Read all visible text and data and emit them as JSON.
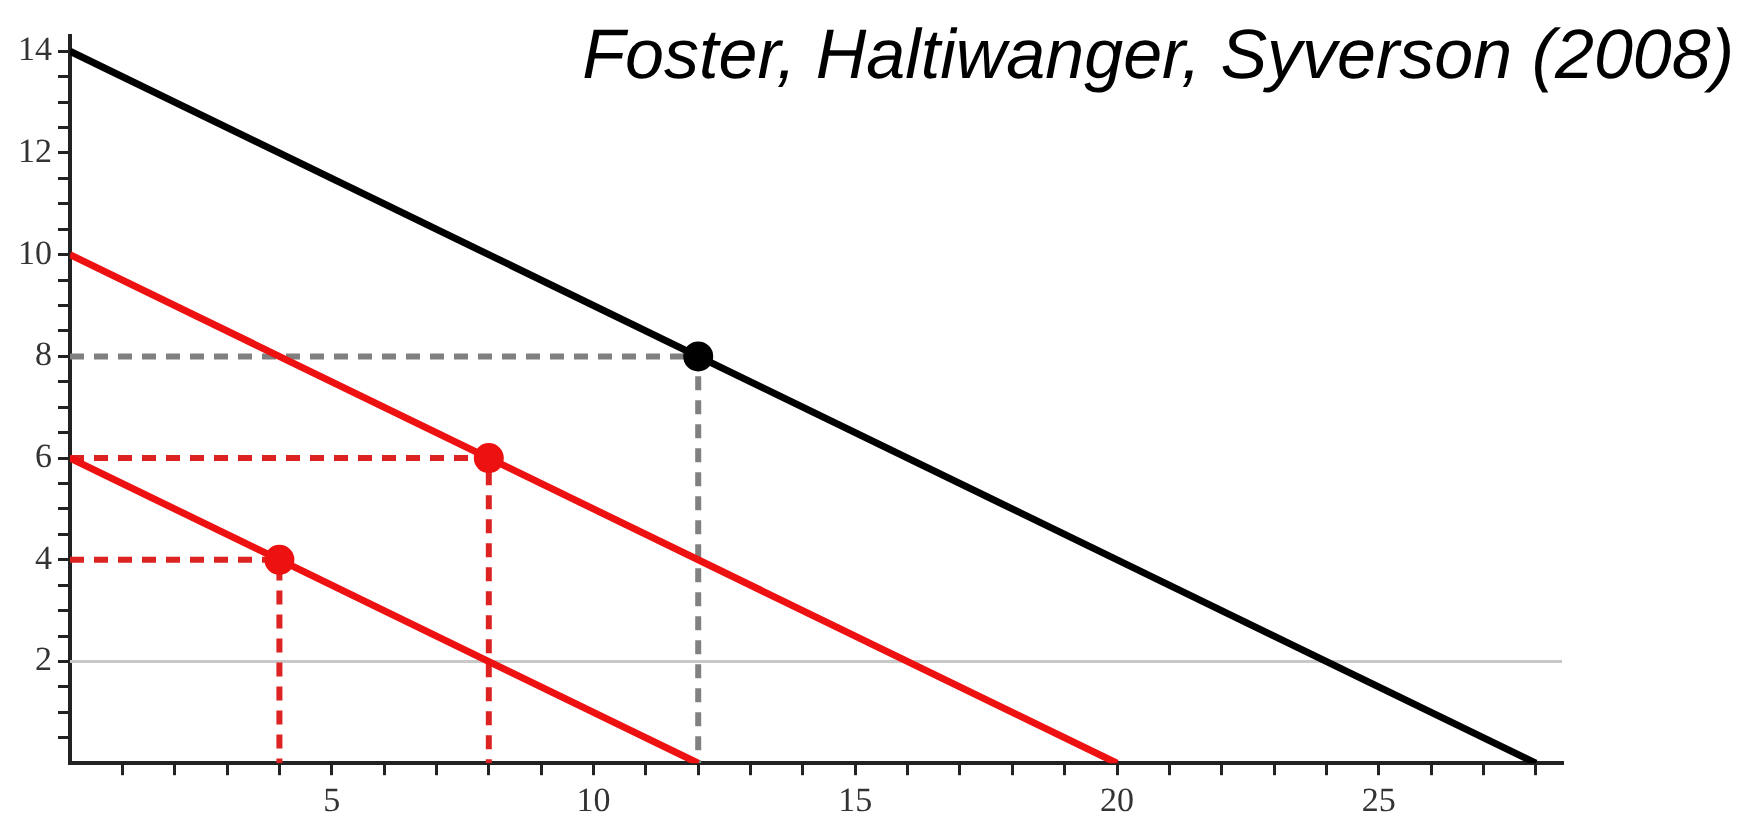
{
  "chart_data": {
    "type": "line",
    "annotations": [
      "Foster, Haltiwanger, Syverson (2008)"
    ],
    "xlim": [
      0,
      28.5
    ],
    "ylim": [
      0,
      14.3
    ],
    "xticks": [
      {
        "value": 1,
        "label": null
      },
      {
        "value": 2,
        "label": null
      },
      {
        "value": 3,
        "label": null
      },
      {
        "value": 4,
        "label": null
      },
      5,
      {
        "value": 6,
        "label": null
      },
      {
        "value": 7,
        "label": null
      },
      {
        "value": 8,
        "label": null
      },
      {
        "value": 9,
        "label": null
      },
      10,
      {
        "value": 11,
        "label": null
      },
      {
        "value": 12,
        "label": null
      },
      {
        "value": 13,
        "label": null
      },
      {
        "value": 14,
        "label": null
      },
      15,
      {
        "value": 16,
        "label": null
      },
      {
        "value": 17,
        "label": null
      },
      {
        "value": 18,
        "label": null
      },
      {
        "value": 19,
        "label": null
      },
      20,
      {
        "value": 21,
        "label": null
      },
      {
        "value": 22,
        "label": null
      },
      {
        "value": 23,
        "label": null
      },
      {
        "value": 24,
        "label": null
      },
      25,
      {
        "value": 26,
        "label": null
      },
      {
        "value": 27,
        "label": null
      },
      {
        "value": 28,
        "label": null
      }
    ],
    "yticks": [
      {
        "value": 0.5,
        "label": null
      },
      {
        "value": 1,
        "label": null
      },
      {
        "value": 1.5,
        "label": null
      },
      2,
      {
        "value": 2.5,
        "label": null
      },
      {
        "value": 3,
        "label": null
      },
      {
        "value": 3.5,
        "label": null
      },
      4,
      {
        "value": 4.5,
        "label": null
      },
      {
        "value": 5,
        "label": null
      },
      {
        "value": 5.5,
        "label": null
      },
      6,
      {
        "value": 6.5,
        "label": null
      },
      {
        "value": 7,
        "label": null
      },
      {
        "value": 7.5,
        "label": null
      },
      8,
      {
        "value": 8.5,
        "label": null
      },
      {
        "value": 9,
        "label": null
      },
      {
        "value": 9.5,
        "label": null
      },
      10,
      {
        "value": 10.5,
        "label": null
      },
      {
        "value": 11,
        "label": null
      },
      {
        "value": 11.5,
        "label": null
      },
      12,
      {
        "value": 12.5,
        "label": null
      },
      {
        "value": 13,
        "label": null
      },
      {
        "value": 13.5,
        "label": null
      },
      14
    ],
    "grid": false,
    "legend": false,
    "marker": "none",
    "line_style": "solid",
    "ref_lines": [
      {
        "axis": "y",
        "value": 2,
        "color": "#c8c8c8"
      }
    ],
    "series": [
      {
        "color": "#000000",
        "x": [
          0,
          28
        ],
        "values": [
          14,
          0
        ]
      },
      {
        "color": "#ee1111",
        "x": [
          0,
          20
        ],
        "values": [
          10,
          0
        ]
      },
      {
        "color": "#ee1111",
        "x": [
          0,
          12
        ],
        "values": [
          6,
          0
        ]
      },
      {
        "color": "#808080",
        "line_style": "dashed",
        "x": [
          0,
          12,
          12
        ],
        "values": [
          8,
          8,
          0
        ]
      },
      {
        "color": "#dd2222",
        "line_style": "dashed",
        "x": [
          0,
          8,
          8
        ],
        "values": [
          6,
          6,
          0
        ]
      },
      {
        "color": "#dd2222",
        "line_style": "dashed",
        "x": [
          0,
          4,
          4
        ],
        "values": [
          4,
          4,
          0
        ]
      },
      {
        "type": "scatter",
        "marker": "circle",
        "color": "#000000",
        "x": [
          12
        ],
        "values": [
          8
        ]
      },
      {
        "type": "scatter",
        "marker": "circle",
        "color": "#ee1111",
        "x": [
          8,
          4
        ],
        "values": [
          6,
          4
        ]
      }
    ]
  }
}
